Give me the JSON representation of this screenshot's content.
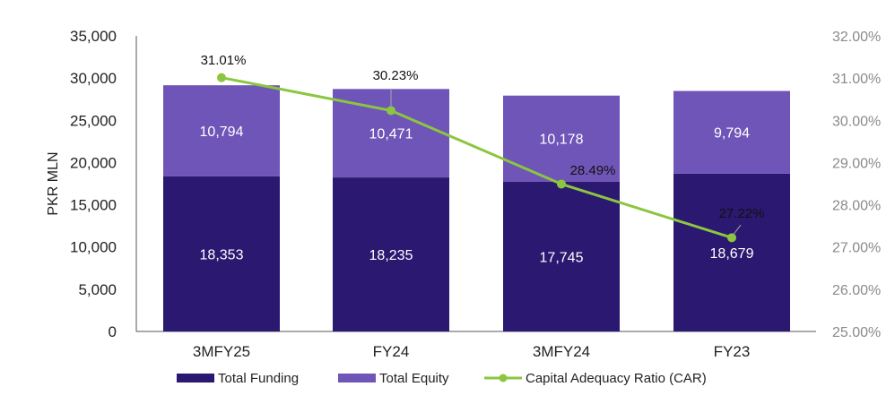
{
  "chart_data": {
    "type": "bar",
    "stacked": true,
    "categories": [
      "3MFY25",
      "FY24",
      "3MFY24",
      "FY23"
    ],
    "series": [
      {
        "name": "Total Funding",
        "type": "bar",
        "values": [
          18353,
          18235,
          17745,
          18679
        ],
        "labels": [
          "18,353",
          "18,235",
          "17,745",
          "18,679"
        ],
        "color": "#2b1871"
      },
      {
        "name": "Total Equity",
        "type": "bar",
        "values": [
          10794,
          10471,
          10178,
          9794
        ],
        "labels": [
          "10,794",
          "10,471",
          "10,178",
          "9,794"
        ],
        "color": "#6f55b8"
      },
      {
        "name": "Capital Adequacy Ratio (CAR)",
        "type": "line",
        "axis": "right",
        "values": [
          31.01,
          30.23,
          28.49,
          27.22
        ],
        "labels": [
          "31.01%",
          "30.23%",
          "28.49%",
          "27.22%"
        ],
        "color": "#8cc63f"
      }
    ],
    "ylabel": "PKR MLN",
    "ylim": [
      0,
      35000
    ],
    "yticks": [
      0,
      5000,
      10000,
      15000,
      20000,
      25000,
      30000,
      35000
    ],
    "ytick_labels": [
      "0",
      "5,000",
      "10,000",
      "15,000",
      "20,000",
      "25,000",
      "30,000",
      "35,000"
    ],
    "y2lim": [
      25,
      32
    ],
    "y2ticks": [
      25,
      26,
      27,
      28,
      29,
      30,
      31,
      32
    ],
    "y2tick_labels": [
      "25.00%",
      "26.00%",
      "27.00%",
      "28.00%",
      "29.00%",
      "30.00%",
      "31.00%",
      "32.00%"
    ],
    "grid": false,
    "legend": "bottom"
  }
}
